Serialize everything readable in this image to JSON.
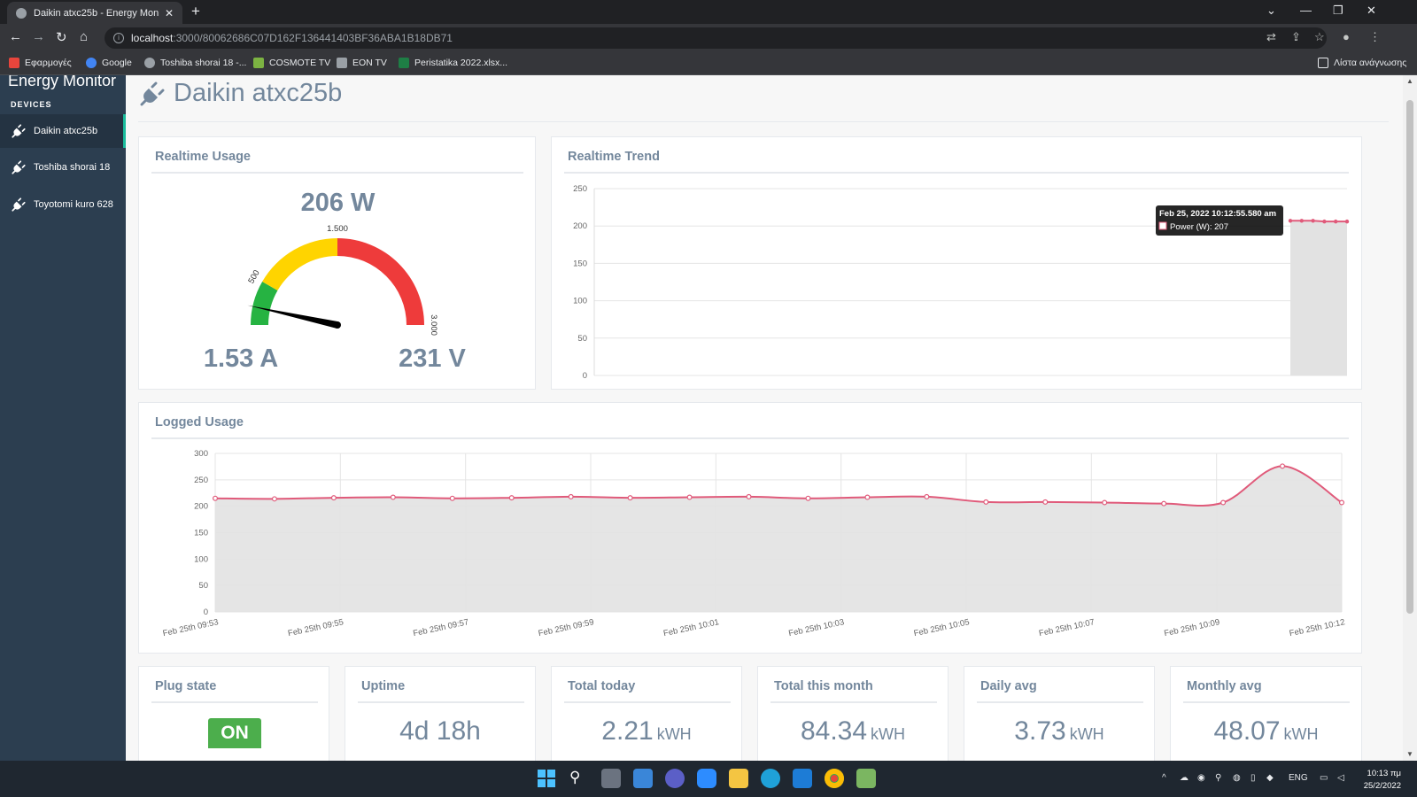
{
  "browser": {
    "tab_title": "Daikin atxc25b - Energy Monitor",
    "url_host": "localhost",
    "url_path": ":3000/80062686C07D162F136441403BF36ABA1B18DB71",
    "bookmarks": [
      {
        "label": "Εφαρμογές",
        "color": "#e8453c"
      },
      {
        "label": "Google",
        "color": "#4285f4"
      },
      {
        "label": "Toshiba shorai 18 -...",
        "color": "#9aa0a6"
      },
      {
        "label": "COSMOTE TV",
        "color": "#7cb342"
      },
      {
        "label": "EON TV",
        "color": "#9aa0a6"
      },
      {
        "label": "Peristatika 2022.xlsx...",
        "color": "#1e7e45"
      }
    ],
    "reading_list": "Λίστα ανάγνωσης"
  },
  "sidebar": {
    "brand": "Energy Monitor",
    "section": "DEVICES",
    "items": [
      {
        "label": "Daikin atxc25b",
        "active": true
      },
      {
        "label": "Toshiba shorai 18",
        "active": false
      },
      {
        "label": "Toyotomi kuro 628",
        "active": false
      }
    ]
  },
  "page": {
    "title": "Daikin atxc25b"
  },
  "realtime_usage": {
    "title": "Realtime Usage",
    "power": "206 W",
    "current": "1.53 A",
    "voltage": "231 V",
    "gauge": {
      "value": 206,
      "min": 0,
      "max": 3000,
      "thresholds": [
        500,
        1500
      ],
      "tick_labels": [
        "500",
        "1.500",
        "3.000"
      ],
      "colors": {
        "low": "#26b342",
        "mid": "#ffd400",
        "high": "#ee3b3b"
      }
    }
  },
  "realtime_trend": {
    "title": "Realtime Trend",
    "tooltip_title": "Feb 25, 2022 10:12:55.580 am",
    "tooltip_body": "Power (W): 207"
  },
  "logged_usage": {
    "title": "Logged Usage"
  },
  "chart_data": [
    {
      "type": "area",
      "name": "realtime-trend",
      "series": [
        {
          "name": "Power (W)",
          "values": [
            207,
            207,
            207,
            206,
            206,
            206
          ]
        }
      ],
      "ylim": [
        0,
        250
      ],
      "yticks": [
        "0",
        "50",
        "100",
        "150",
        "200",
        "250"
      ],
      "grid": true,
      "color": "#e05a7a"
    },
    {
      "type": "area",
      "name": "logged-usage",
      "x_tick_labels": [
        "Feb 25th 09:53",
        "Feb 25th 09:55",
        "Feb 25th 09:57",
        "Feb 25th 09:59",
        "Feb 25th 10:01",
        "Feb 25th 10:03",
        "Feb 25th 10:05",
        "Feb 25th 10:07",
        "Feb 25th 10:09",
        "Feb 25th 10:12"
      ],
      "values": [
        215,
        214,
        216,
        217,
        215,
        216,
        218,
        216,
        217,
        218,
        215,
        217,
        218,
        208,
        208,
        207,
        205,
        207,
        276,
        207
      ],
      "ylim": [
        0,
        300
      ],
      "yticks": [
        "0",
        "50",
        "100",
        "150",
        "200",
        "250",
        "300"
      ],
      "grid": true,
      "color": "#e05a7a"
    }
  ],
  "stats": [
    {
      "title": "Plug state",
      "value": "ON",
      "unit": ""
    },
    {
      "title": "Uptime",
      "value": "4d 18h",
      "unit": ""
    },
    {
      "title": "Total today",
      "value": "2.21",
      "unit": "kWH"
    },
    {
      "title": "Total this month",
      "value": "84.34",
      "unit": "kWH"
    },
    {
      "title": "Daily avg",
      "value": "3.73",
      "unit": "kWH"
    },
    {
      "title": "Monthly avg",
      "value": "48.07",
      "unit": "kWH"
    }
  ],
  "taskbar": {
    "lang": "ENG",
    "time": "10:13 πμ",
    "date": "25/2/2022"
  }
}
